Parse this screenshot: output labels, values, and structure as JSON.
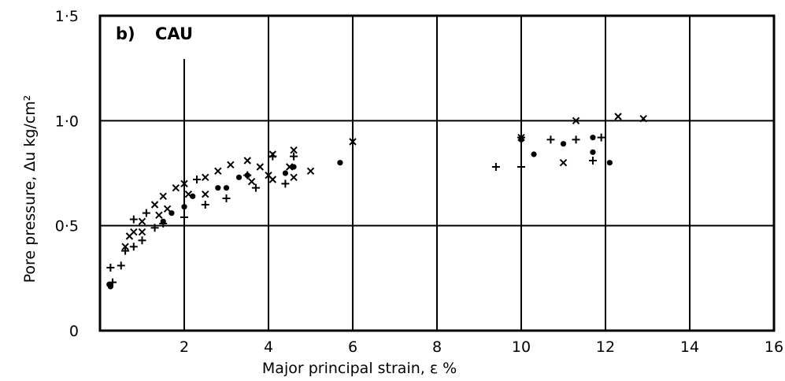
{
  "chart_data": {
    "type": "scatter",
    "panel_label": "b)",
    "title": "CAU",
    "xlabel": "Major principal strain, ε %",
    "ylabel": "Pore pressure, Δu kg/cm²",
    "xlim": [
      0,
      16
    ],
    "ylim": [
      0,
      1.5
    ],
    "x_ticks": [
      2,
      4,
      6,
      8,
      10,
      12,
      14,
      16
    ],
    "x_tick_labels": [
      "2",
      "4",
      "6",
      "8",
      "10",
      "12",
      "14",
      "16"
    ],
    "y_ticks": [
      0,
      0.5,
      1.0,
      1.5
    ],
    "y_tick_labels": [
      "0",
      "0·5",
      "1·0",
      "1·5"
    ],
    "grid": true,
    "series": [
      {
        "marker": "dot",
        "points": [
          [
            0.22,
            0.22
          ],
          [
            0.25,
            0.21
          ],
          [
            1.5,
            0.52
          ],
          [
            1.7,
            0.56
          ],
          [
            2.0,
            0.59
          ],
          [
            2.2,
            0.64
          ],
          [
            2.8,
            0.68
          ],
          [
            3.0,
            0.68
          ],
          [
            3.3,
            0.73
          ],
          [
            3.5,
            0.74
          ],
          [
            4.4,
            0.75
          ],
          [
            4.6,
            0.78
          ],
          [
            5.7,
            0.8
          ],
          [
            10.0,
            0.91
          ],
          [
            10.3,
            0.84
          ],
          [
            11.0,
            0.89
          ],
          [
            11.7,
            0.92
          ],
          [
            11.7,
            0.85
          ],
          [
            12.1,
            0.8
          ]
        ]
      },
      {
        "marker": "plus",
        "points": [
          [
            0.25,
            0.3
          ],
          [
            0.3,
            0.23
          ],
          [
            0.5,
            0.31
          ],
          [
            0.6,
            0.38
          ],
          [
            0.8,
            0.4
          ],
          [
            0.8,
            0.53
          ],
          [
            1.0,
            0.43
          ],
          [
            1.1,
            0.56
          ],
          [
            1.3,
            0.49
          ],
          [
            1.5,
            0.51
          ],
          [
            2.0,
            0.54
          ],
          [
            2.3,
            0.72
          ],
          [
            2.5,
            0.6
          ],
          [
            3.0,
            0.63
          ],
          [
            3.5,
            0.74
          ],
          [
            3.7,
            0.68
          ],
          [
            4.1,
            0.83
          ],
          [
            4.4,
            0.7
          ],
          [
            4.6,
            0.83
          ],
          [
            9.4,
            0.78
          ],
          [
            10.0,
            0.78
          ],
          [
            10.0,
            0.92
          ],
          [
            10.7,
            0.91
          ],
          [
            11.3,
            0.91
          ],
          [
            11.7,
            0.81
          ],
          [
            11.9,
            0.92
          ]
        ]
      },
      {
        "marker": "cross",
        "points": [
          [
            0.6,
            0.4
          ],
          [
            0.7,
            0.45
          ],
          [
            0.8,
            0.47
          ],
          [
            1.0,
            0.52
          ],
          [
            1.0,
            0.47
          ],
          [
            1.3,
            0.6
          ],
          [
            1.4,
            0.55
          ],
          [
            1.5,
            0.64
          ],
          [
            1.6,
            0.58
          ],
          [
            1.8,
            0.68
          ],
          [
            2.0,
            0.7
          ],
          [
            2.1,
            0.65
          ],
          [
            2.5,
            0.73
          ],
          [
            2.5,
            0.65
          ],
          [
            2.8,
            0.76
          ],
          [
            3.1,
            0.79
          ],
          [
            3.5,
            0.81
          ],
          [
            3.6,
            0.71
          ],
          [
            3.8,
            0.78
          ],
          [
            4.0,
            0.74
          ],
          [
            4.1,
            0.72
          ],
          [
            4.1,
            0.84
          ],
          [
            4.5,
            0.78
          ],
          [
            4.6,
            0.86
          ],
          [
            4.6,
            0.73
          ],
          [
            5.0,
            0.76
          ],
          [
            6.0,
            0.9
          ],
          [
            10.0,
            0.92
          ],
          [
            11.0,
            0.8
          ],
          [
            11.3,
            1.0
          ],
          [
            12.3,
            1.02
          ],
          [
            12.9,
            1.01
          ]
        ]
      }
    ]
  }
}
